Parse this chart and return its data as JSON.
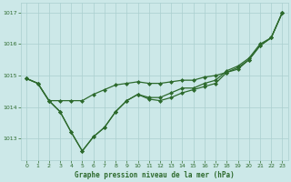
{
  "hours": [
    0,
    1,
    2,
    3,
    4,
    5,
    6,
    7,
    8,
    9,
    10,
    11,
    12,
    13,
    14,
    15,
    16,
    17,
    18,
    19,
    20,
    21,
    22,
    23
  ],
  "line1": [
    1014.9,
    1014.75,
    1014.2,
    1014.2,
    1014.2,
    1014.2,
    1014.4,
    1014.55,
    1014.7,
    1014.75,
    1014.8,
    1014.75,
    1014.75,
    1014.8,
    1014.85,
    1014.85,
    1014.95,
    1015.0,
    1015.1,
    1015.25,
    1015.5,
    1015.95,
    1016.2,
    1017.0
  ],
  "line2": [
    1014.9,
    1014.75,
    1014.2,
    1013.85,
    1013.2,
    1012.6,
    1013.05,
    1013.35,
    1013.85,
    1014.2,
    1014.4,
    1014.25,
    1014.2,
    1014.3,
    1014.45,
    1014.55,
    1014.65,
    1014.75,
    1015.1,
    1015.2,
    1015.5,
    1015.95,
    1016.2,
    1017.0
  ],
  "line3": [
    1014.9,
    1014.75,
    1014.2,
    1013.85,
    1013.2,
    1012.6,
    1013.05,
    1013.35,
    1013.85,
    1014.2,
    1014.4,
    1014.3,
    1014.3,
    1014.45,
    1014.6,
    1014.6,
    1014.75,
    1014.85,
    1015.15,
    1015.3,
    1015.55,
    1016.0,
    1016.2,
    1017.0
  ],
  "bg_color": "#cce8e8",
  "grid_color": "#aacfcf",
  "line_color": "#2d6a2d",
  "xlim": [
    -0.5,
    23.5
  ],
  "ylim": [
    1012.3,
    1017.3
  ],
  "yticks": [
    1013,
    1014,
    1015,
    1016,
    1017
  ],
  "xticks": [
    0,
    1,
    2,
    3,
    4,
    5,
    6,
    7,
    8,
    9,
    10,
    11,
    12,
    13,
    14,
    15,
    16,
    17,
    18,
    19,
    20,
    21,
    22,
    23
  ],
  "xlabel": "Graphe pression niveau de la mer (hPa)",
  "marker": "D",
  "marker_size": 2.0,
  "linewidth": 0.9,
  "font_color": "#2d6a2d",
  "tick_fontsize": 4.5,
  "ylabel_fontsize": 5.0,
  "xlabel_fontsize": 5.5
}
